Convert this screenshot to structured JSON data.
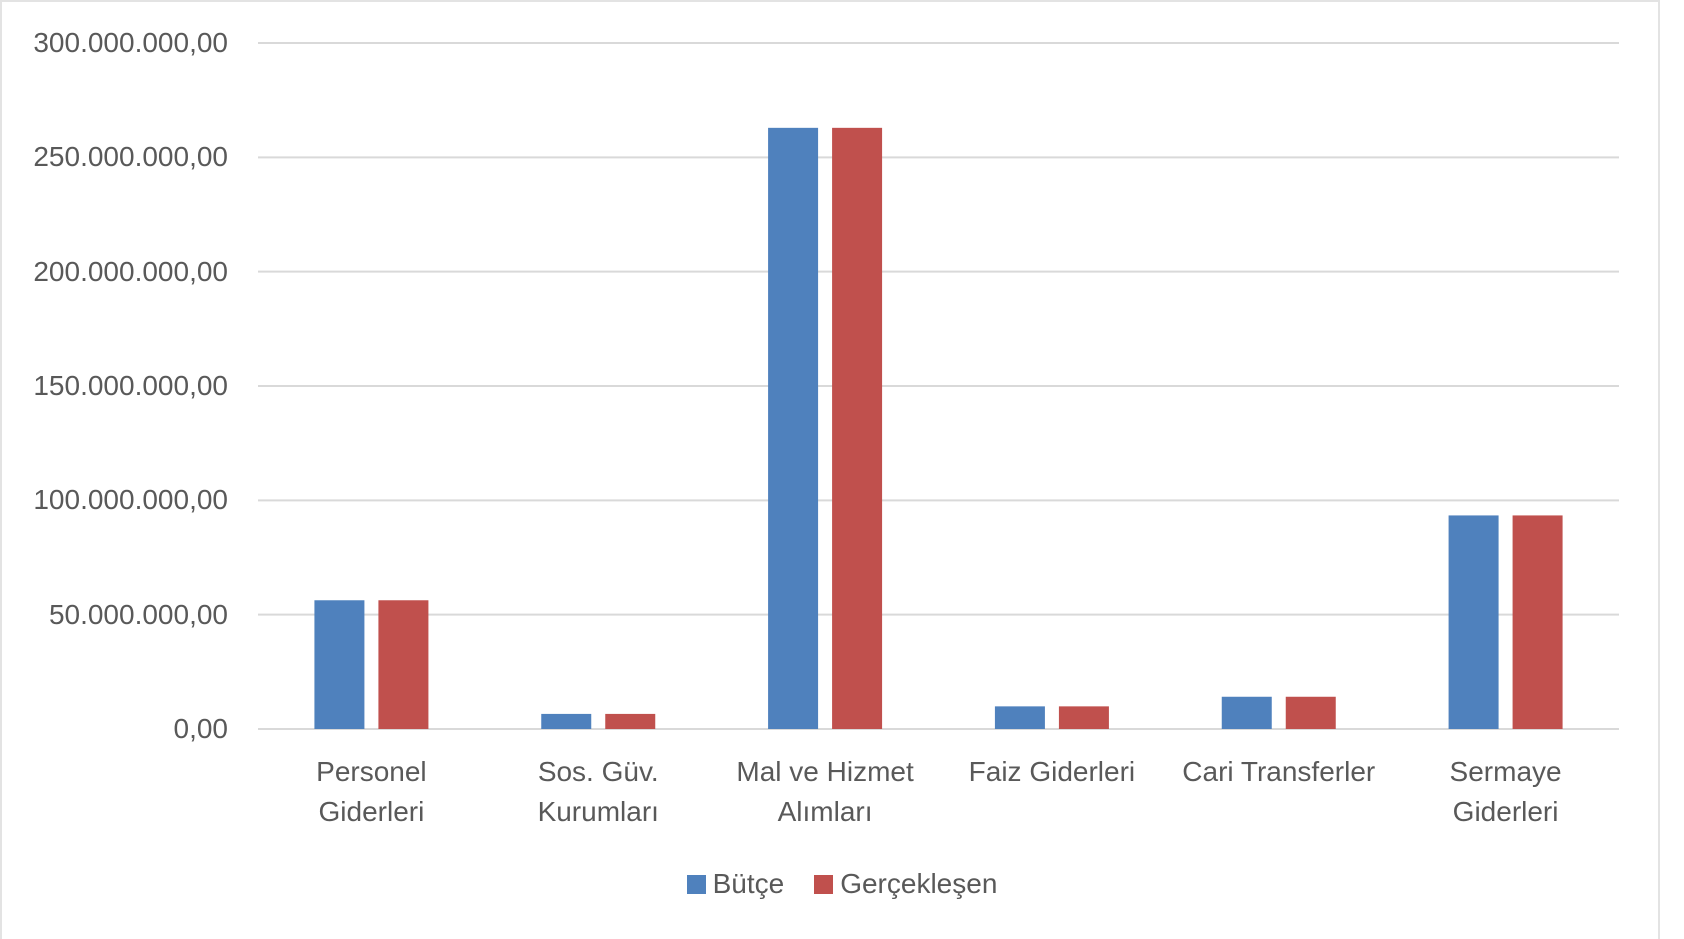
{
  "chart_data": {
    "type": "bar",
    "categories": [
      "Personel Giderleri",
      "Sos. Güv. Kurumları",
      "Mal ve Hizmet Alımları",
      "Faiz Giderleri",
      "Cari Transferler",
      "Sermaye Giderleri"
    ],
    "series": [
      {
        "name": "Bütçe",
        "color": "#4f81bd",
        "values": [
          56300000,
          6600000,
          262900000,
          9900000,
          14100000,
          93400000
        ]
      },
      {
        "name": "Gerçekleşen",
        "color": "#c0504d",
        "values": [
          56300000,
          6600000,
          262900000,
          9900000,
          14100000,
          93400000
        ]
      }
    ],
    "ylim": [
      0,
      300000000
    ],
    "yticks": [
      {
        "value": 0,
        "label": "0,00"
      },
      {
        "value": 50000000,
        "label": "50.000.000,00"
      },
      {
        "value": 100000000,
        "label": "100.000.000,00"
      },
      {
        "value": 150000000,
        "label": "150.000.000,00"
      },
      {
        "value": 200000000,
        "label": "200.000.000,00"
      },
      {
        "value": 250000000,
        "label": "250.000.000,00"
      },
      {
        "value": 300000000,
        "label": "300.000.000,00"
      }
    ],
    "grid": true,
    "legend": "bottom"
  }
}
